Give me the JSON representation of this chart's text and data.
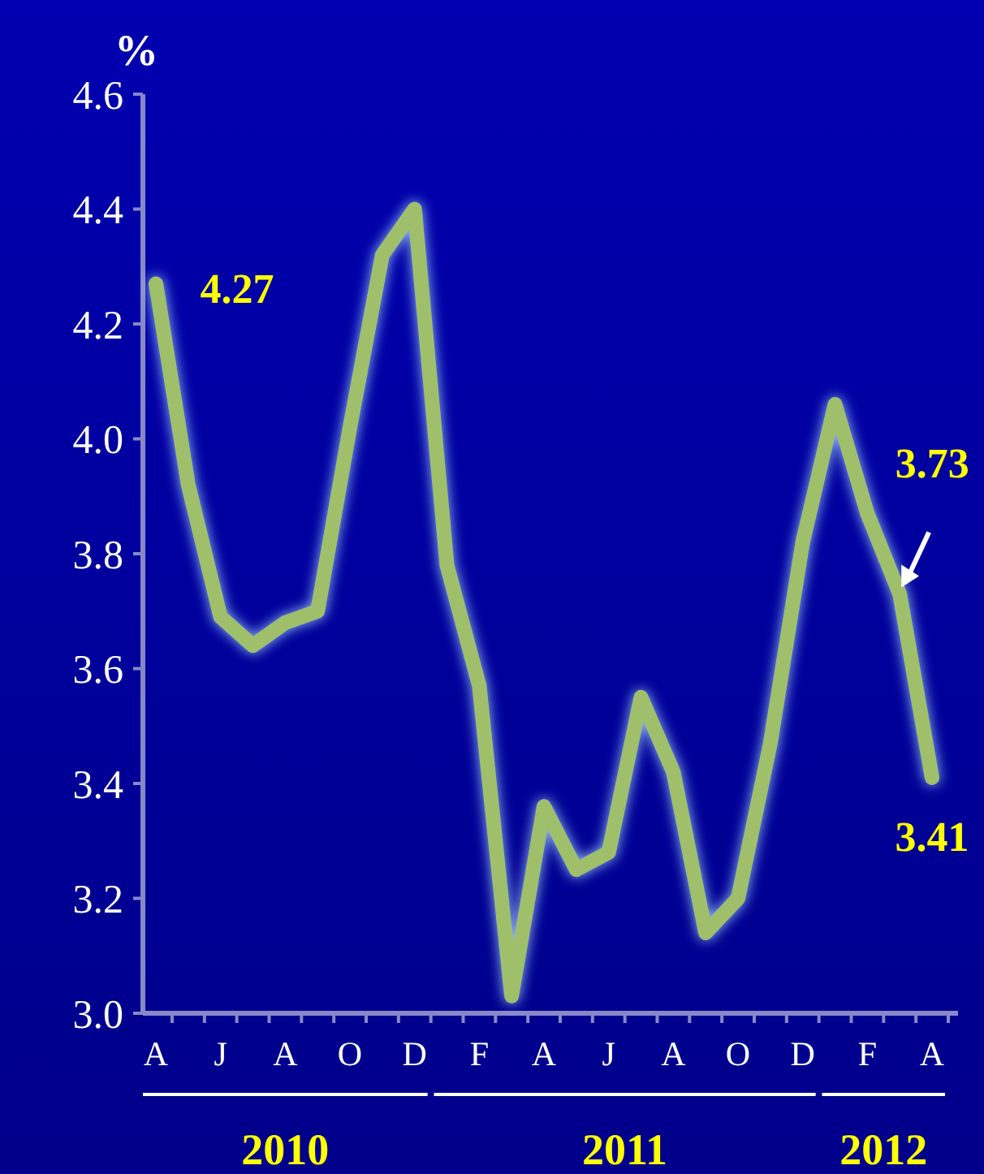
{
  "chart_data": {
    "type": "line",
    "ylabel": "%",
    "categories": [
      "A",
      null,
      "J",
      null,
      "A",
      null,
      "O",
      null,
      "D",
      null,
      "F",
      null,
      "A",
      null,
      "J",
      null,
      "A",
      null,
      "O",
      null,
      "D",
      null,
      "F",
      null,
      "A"
    ],
    "series": [
      {
        "color": "#9fbf6a",
        "values": [
          4.27,
          3.92,
          3.69,
          3.64,
          3.68,
          3.7,
          4.02,
          4.32,
          4.4,
          3.78,
          3.57,
          3.03,
          3.36,
          3.25,
          3.28,
          3.55,
          3.42,
          3.14,
          3.2,
          3.47,
          3.82,
          4.06,
          3.87,
          3.73,
          3.41
        ],
        "value_labels": [
          "4.27",
          null,
          null,
          null,
          null,
          null,
          null,
          null,
          null,
          null,
          null,
          null,
          null,
          null,
          null,
          null,
          null,
          null,
          null,
          null,
          null,
          null,
          null,
          "3.73",
          "3.41"
        ]
      }
    ],
    "ylim": [
      3.0,
      4.6
    ],
    "yticks": [
      {
        "value": 3,
        "label": "3.0"
      },
      3.2,
      3.4,
      3.6,
      3.8,
      {
        "value": 4,
        "label": "4.0"
      },
      4.2,
      4.4,
      4.6
    ],
    "annotations": [
      "2010",
      "2011",
      "2012"
    ],
    "grid": false,
    "marker": "none",
    "line_style": "solid"
  }
}
